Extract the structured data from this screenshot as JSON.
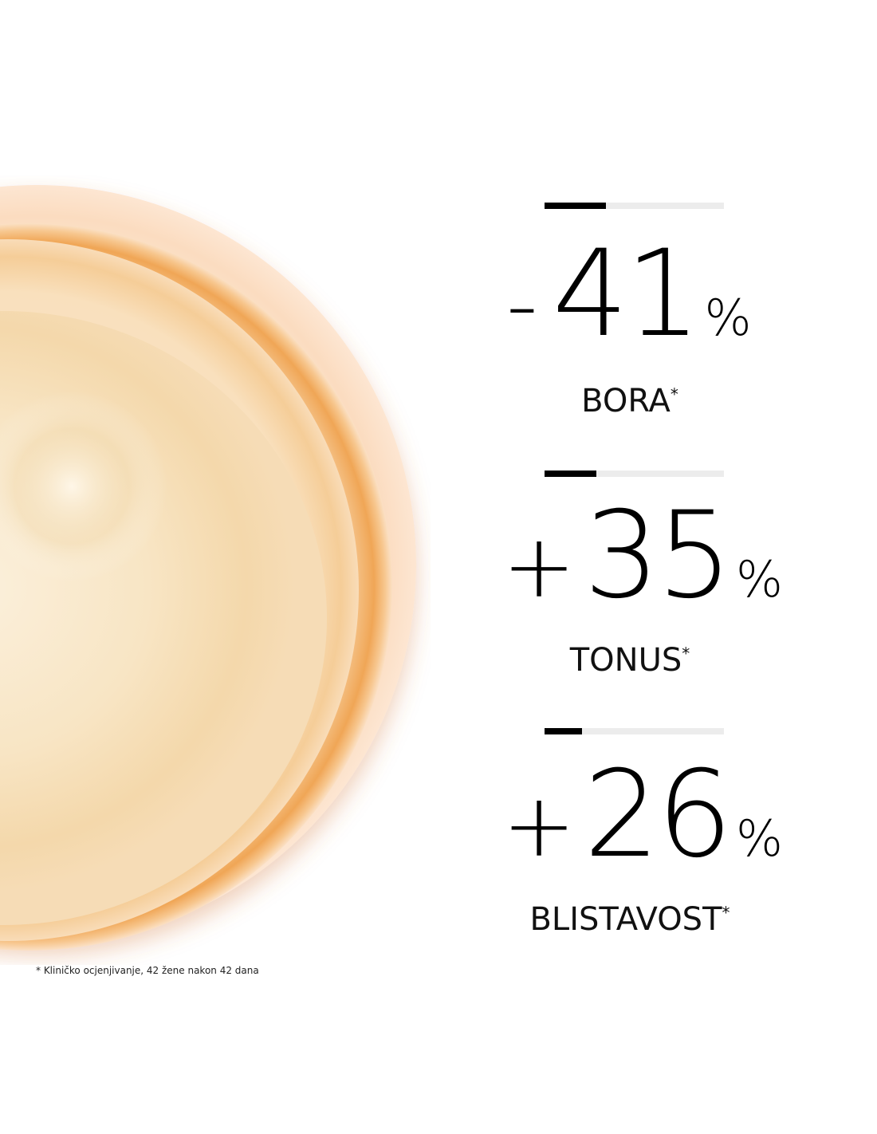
{
  "stats": [
    {
      "sign": "-",
      "value": "41",
      "unit": "%",
      "label": "BORA",
      "mark": "*",
      "bar_fill": 0.34
    },
    {
      "sign": "+",
      "value": "35",
      "unit": "%",
      "label": "TONUS",
      "mark": "*",
      "bar_fill": 0.29
    },
    {
      "sign": "+",
      "value": "26",
      "unit": "%",
      "label": "BLISTAVOST",
      "mark": "*",
      "bar_fill": 0.21
    }
  ],
  "footnote": "* Kliničko ocjenjivanje, 42 žene nakon 42 dana",
  "colors": {
    "bar_fill": "#000000",
    "bar_track": "#ececec",
    "cream": "#f8e5c4",
    "jar_rim": "#f0a656"
  }
}
